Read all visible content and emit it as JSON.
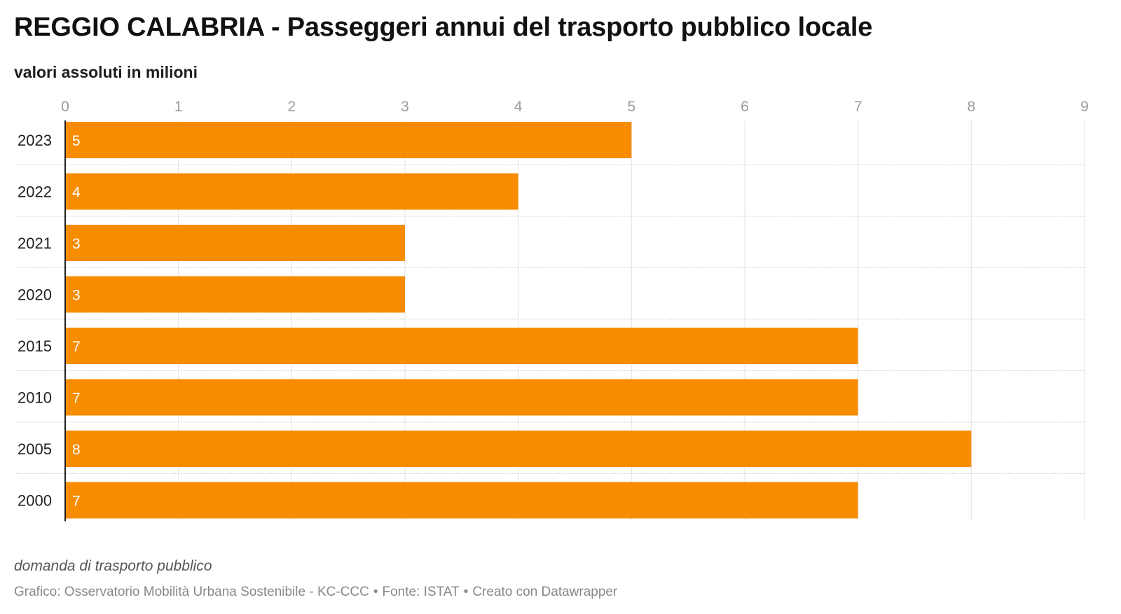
{
  "title": "REGGIO CALABRIA - Passeggeri annui del trasporto pubblico locale",
  "subtitle": "valori assoluti in milioni",
  "note": "domanda di trasporto pubblico",
  "footer": {
    "chart_by": "Grafico: Osservatorio Mobilità Urbana Sostenibile - KC-CCC",
    "source": "Fonte: ISTAT",
    "made_with": "Creato con Datawrapper",
    "separator": "•"
  },
  "colors": {
    "bar": "#F78C00",
    "bar_label": "#ffffff",
    "grid": "#e3e3e3",
    "row_divider": "#cfcfcf",
    "tick_label": "#9a9a9a",
    "category_label": "#222222",
    "baseline": "#222222"
  },
  "chart_data": {
    "type": "bar",
    "orientation": "horizontal",
    "categories": [
      "2023",
      "2022",
      "2021",
      "2020",
      "2015",
      "2010",
      "2005",
      "2000"
    ],
    "values": [
      5,
      4,
      3,
      3,
      7,
      7,
      8,
      7
    ],
    "value_labels": [
      "5",
      "4",
      "3",
      "3",
      "7",
      "7",
      "8",
      "7"
    ],
    "xlim": [
      0,
      9
    ],
    "x_ticks": [
      0,
      1,
      2,
      3,
      4,
      5,
      6,
      7,
      8,
      9
    ],
    "x_axis_position": "top",
    "grid": true,
    "legend": "none",
    "title": "REGGIO CALABRIA - Passeggeri annui del trasporto pubblico locale",
    "subtitle": "valori assoluti in milioni"
  }
}
